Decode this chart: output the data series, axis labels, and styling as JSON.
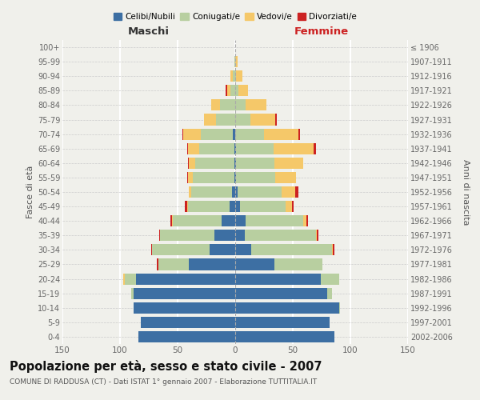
{
  "age_groups": [
    "0-4",
    "5-9",
    "10-14",
    "15-19",
    "20-24",
    "25-29",
    "30-34",
    "35-39",
    "40-44",
    "45-49",
    "50-54",
    "55-59",
    "60-64",
    "65-69",
    "70-74",
    "75-79",
    "80-84",
    "85-89",
    "90-94",
    "95-99",
    "100+"
  ],
  "birth_years": [
    "2002-2006",
    "1997-2001",
    "1992-1996",
    "1987-1991",
    "1982-1986",
    "1977-1981",
    "1972-1976",
    "1967-1971",
    "1962-1966",
    "1957-1961",
    "1952-1956",
    "1947-1951",
    "1942-1946",
    "1937-1941",
    "1932-1936",
    "1927-1931",
    "1922-1926",
    "1917-1921",
    "1912-1916",
    "1907-1911",
    "≤ 1906"
  ],
  "male_celibi": [
    84,
    82,
    88,
    88,
    86,
    40,
    22,
    18,
    12,
    5,
    3,
    1,
    1,
    1,
    2,
    0,
    0,
    0,
    0,
    0,
    0
  ],
  "male_coniugati": [
    0,
    0,
    0,
    2,
    10,
    27,
    50,
    47,
    42,
    36,
    35,
    36,
    34,
    30,
    28,
    17,
    13,
    4,
    2,
    1,
    0
  ],
  "male_vedovi": [
    0,
    0,
    0,
    0,
    1,
    0,
    0,
    0,
    1,
    1,
    2,
    4,
    5,
    10,
    15,
    10,
    8,
    3,
    2,
    0,
    0
  ],
  "male_divorziati": [
    0,
    0,
    0,
    0,
    0,
    1,
    1,
    1,
    1,
    2,
    0,
    1,
    1,
    1,
    1,
    0,
    0,
    1,
    0,
    0,
    0
  ],
  "female_celibi": [
    86,
    82,
    90,
    80,
    74,
    34,
    14,
    8,
    9,
    4,
    2,
    1,
    1,
    1,
    0,
    0,
    0,
    0,
    0,
    0,
    0
  ],
  "female_coniugati": [
    0,
    0,
    1,
    4,
    16,
    42,
    70,
    62,
    50,
    40,
    38,
    34,
    33,
    32,
    25,
    13,
    9,
    3,
    1,
    0,
    0
  ],
  "female_vedovi": [
    0,
    0,
    0,
    0,
    0,
    0,
    1,
    1,
    3,
    5,
    12,
    18,
    25,
    35,
    30,
    22,
    18,
    8,
    5,
    2,
    0
  ],
  "female_divorziati": [
    0,
    0,
    0,
    0,
    0,
    0,
    1,
    1,
    1,
    2,
    3,
    0,
    0,
    2,
    1,
    1,
    0,
    0,
    0,
    0,
    0
  ],
  "color_celibi": "#3d6fa3",
  "color_coniugati": "#b8cfa0",
  "color_vedovi": "#f5c869",
  "color_divorziati": "#cc2222",
  "title": "Popolazione per età, sesso e stato civile - 2007",
  "subtitle": "COMUNE DI RADDUSA (CT) - Dati ISTAT 1° gennaio 2007 - Elaborazione TUTTITALIA.IT",
  "xlabel_left": "Maschi",
  "xlabel_right": "Femmine",
  "ylabel_left": "Fasce di età",
  "ylabel_right": "Anni di nascita",
  "xlim": 150,
  "background_color": "#f0f0eb"
}
